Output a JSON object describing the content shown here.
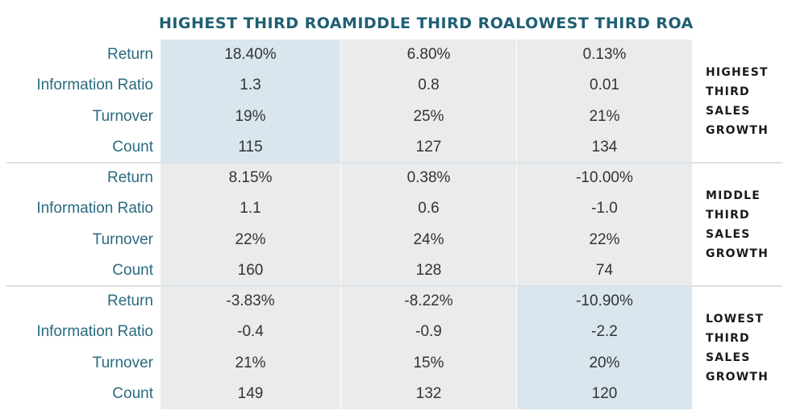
{
  "colors": {
    "header_text": "#1f5f73",
    "label_text": "#2a6b80",
    "cell_bg": "#eaebec",
    "highlight_bg": "#d9e6ee",
    "divider": "#dde2e6"
  },
  "chart_data": {
    "type": "table",
    "columns": [
      "HIGHEST THIRD ROA",
      "MIDDLE THIRD ROA",
      "LOWEST THIRD ROA"
    ],
    "metrics": [
      "Return",
      "Information Ratio",
      "Turnover",
      "Count"
    ],
    "row_groups": [
      {
        "label": [
          "HIGHEST",
          "THIRD",
          "SALES",
          "GROWTH"
        ],
        "values": [
          [
            "18.40%",
            "6.80%",
            "0.13%"
          ],
          [
            "1.3",
            "0.8",
            "0.01"
          ],
          [
            "19%",
            "25%",
            "21%"
          ],
          [
            "115",
            "127",
            "134"
          ]
        ],
        "highlight_col": 0
      },
      {
        "label": [
          "MIDDLE",
          "THIRD",
          "SALES",
          "GROWTH"
        ],
        "values": [
          [
            "8.15%",
            "0.38%",
            "-10.00%"
          ],
          [
            "1.1",
            "0.6",
            "-1.0"
          ],
          [
            "22%",
            "24%",
            "22%"
          ],
          [
            "160",
            "128",
            "74"
          ]
        ],
        "highlight_col": null
      },
      {
        "label": [
          "LOWEST",
          "THIRD",
          "SALES",
          "GROWTH"
        ],
        "values": [
          [
            "-3.83%",
            "-8.22%",
            "-10.90%"
          ],
          [
            "-0.4",
            "-0.9",
            "-2.2"
          ],
          [
            "21%",
            "15%",
            "20%"
          ],
          [
            "149",
            "132",
            "120"
          ]
        ],
        "highlight_col": 2
      }
    ]
  }
}
